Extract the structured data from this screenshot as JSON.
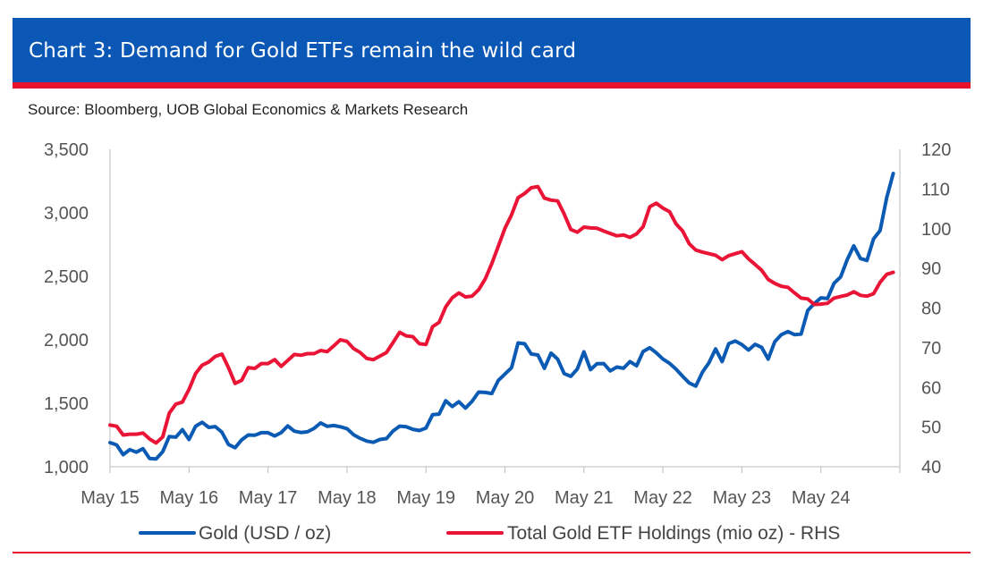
{
  "header": {
    "title": "Chart 3: Demand for Gold ETFs remain the wild card",
    "source": "Source: Bloomberg, UOB Global Economics & Markets Research"
  },
  "colors": {
    "brand_blue": "#0a57b5",
    "brand_red": "#e8112d",
    "gold_line": "#0b5ab3",
    "etf_line": "#ea1536"
  },
  "chart_data": {
    "type": "line",
    "x_labels": [
      "May 15",
      "May 16",
      "May 17",
      "May 18",
      "May 19",
      "May 20",
      "May 21",
      "May 22",
      "May 23",
      "May 24"
    ],
    "ylim_left": [
      1000,
      3500
    ],
    "yticks_left": [
      "1,000",
      "1,500",
      "2,000",
      "2,500",
      "3,000",
      "3,500"
    ],
    "ylim_right": [
      40,
      120
    ],
    "yticks_right": [
      "40",
      "50",
      "60",
      "70",
      "80",
      "90",
      "100",
      "110",
      "120"
    ],
    "legend_position": "bottom",
    "series": [
      {
        "name": "Gold (USD / oz)",
        "axis": "left",
        "color": "#0b5ab3",
        "x": [
          "2015-05",
          "2015-06",
          "2015-07",
          "2015-08",
          "2015-09",
          "2015-10",
          "2015-11",
          "2015-12",
          "2016-01",
          "2016-02",
          "2016-03",
          "2016-04",
          "2016-05",
          "2016-06",
          "2016-07",
          "2016-08",
          "2016-09",
          "2016-10",
          "2016-11",
          "2016-12",
          "2017-01",
          "2017-02",
          "2017-03",
          "2017-04",
          "2017-05",
          "2017-06",
          "2017-07",
          "2017-08",
          "2017-09",
          "2017-10",
          "2017-11",
          "2017-12",
          "2018-01",
          "2018-02",
          "2018-03",
          "2018-04",
          "2018-05",
          "2018-06",
          "2018-07",
          "2018-08",
          "2018-09",
          "2018-10",
          "2018-11",
          "2018-12",
          "2019-01",
          "2019-02",
          "2019-03",
          "2019-04",
          "2019-05",
          "2019-06",
          "2019-07",
          "2019-08",
          "2019-09",
          "2019-10",
          "2019-11",
          "2019-12",
          "2020-01",
          "2020-02",
          "2020-03",
          "2020-04",
          "2020-05",
          "2020-06",
          "2020-07",
          "2020-08",
          "2020-09",
          "2020-10",
          "2020-11",
          "2020-12",
          "2021-01",
          "2021-02",
          "2021-03",
          "2021-04",
          "2021-05",
          "2021-06",
          "2021-07",
          "2021-08",
          "2021-09",
          "2021-10",
          "2021-11",
          "2021-12",
          "2022-01",
          "2022-02",
          "2022-03",
          "2022-04",
          "2022-05",
          "2022-06",
          "2022-07",
          "2022-08",
          "2022-09",
          "2022-10",
          "2022-11",
          "2022-12",
          "2023-01",
          "2023-02",
          "2023-03",
          "2023-04",
          "2023-05",
          "2023-06",
          "2023-07",
          "2023-08",
          "2023-09",
          "2023-10",
          "2023-11",
          "2023-12",
          "2024-01",
          "2024-02",
          "2024-03",
          "2024-04",
          "2024-05",
          "2024-06",
          "2024-07",
          "2024-08",
          "2024-09",
          "2024-10",
          "2024-11",
          "2024-12",
          "2025-01",
          "2025-02",
          "2025-03",
          "2025-04"
        ],
        "values": [
          1190,
          1172,
          1095,
          1135,
          1115,
          1142,
          1065,
          1061,
          1118,
          1238,
          1233,
          1292,
          1215,
          1320,
          1350,
          1310,
          1316,
          1272,
          1175,
          1150,
          1212,
          1250,
          1248,
          1268,
          1268,
          1242,
          1268,
          1322,
          1280,
          1270,
          1275,
          1302,
          1345,
          1318,
          1325,
          1315,
          1300,
          1252,
          1224,
          1202,
          1192,
          1215,
          1222,
          1282,
          1320,
          1315,
          1295,
          1285,
          1305,
          1410,
          1415,
          1520,
          1475,
          1512,
          1462,
          1515,
          1588,
          1585,
          1577,
          1680,
          1730,
          1780,
          1975,
          1968,
          1888,
          1880,
          1775,
          1895,
          1848,
          1734,
          1712,
          1770,
          1905,
          1765,
          1812,
          1813,
          1755,
          1785,
          1775,
          1828,
          1795,
          1908,
          1937,
          1897,
          1848,
          1815,
          1768,
          1712,
          1660,
          1635,
          1745,
          1820,
          1928,
          1828,
          1970,
          1990,
          1962,
          1919,
          1964,
          1940,
          1848,
          1985,
          2040,
          2065,
          2040,
          2045,
          2230,
          2285,
          2330,
          2325,
          2445,
          2495,
          2630,
          2740,
          2640,
          2625,
          2795,
          2860,
          3120,
          3310
        ]
      },
      {
        "name": "Total Gold ETF Holdings (mio oz) - RHS",
        "axis": "right",
        "color": "#ea1536",
        "x": [
          "2015-05",
          "2015-06",
          "2015-07",
          "2015-08",
          "2015-09",
          "2015-10",
          "2015-11",
          "2015-12",
          "2016-01",
          "2016-02",
          "2016-03",
          "2016-04",
          "2016-05",
          "2016-06",
          "2016-07",
          "2016-08",
          "2016-09",
          "2016-10",
          "2016-11",
          "2016-12",
          "2017-01",
          "2017-02",
          "2017-03",
          "2017-04",
          "2017-05",
          "2017-06",
          "2017-07",
          "2017-08",
          "2017-09",
          "2017-10",
          "2017-11",
          "2017-12",
          "2018-01",
          "2018-02",
          "2018-03",
          "2018-04",
          "2018-05",
          "2018-06",
          "2018-07",
          "2018-08",
          "2018-09",
          "2018-10",
          "2018-11",
          "2018-12",
          "2019-01",
          "2019-02",
          "2019-03",
          "2019-04",
          "2019-05",
          "2019-06",
          "2019-07",
          "2019-08",
          "2019-09",
          "2019-10",
          "2019-11",
          "2019-12",
          "2020-01",
          "2020-02",
          "2020-03",
          "2020-04",
          "2020-05",
          "2020-06",
          "2020-07",
          "2020-08",
          "2020-09",
          "2020-10",
          "2020-11",
          "2020-12",
          "2021-01",
          "2021-02",
          "2021-03",
          "2021-04",
          "2021-05",
          "2021-06",
          "2021-07",
          "2021-08",
          "2021-09",
          "2021-10",
          "2021-11",
          "2021-12",
          "2022-01",
          "2022-02",
          "2022-03",
          "2022-04",
          "2022-05",
          "2022-06",
          "2022-07",
          "2022-08",
          "2022-09",
          "2022-10",
          "2022-11",
          "2022-12",
          "2023-01",
          "2023-02",
          "2023-03",
          "2023-04",
          "2023-05",
          "2023-06",
          "2023-07",
          "2023-08",
          "2023-09",
          "2023-10",
          "2023-11",
          "2023-12",
          "2024-01",
          "2024-02",
          "2024-03",
          "2024-04",
          "2024-05",
          "2024-06",
          "2024-07",
          "2024-08",
          "2024-09",
          "2024-10",
          "2024-11",
          "2024-12",
          "2025-01",
          "2025-02",
          "2025-03",
          "2025-04"
        ],
        "values": [
          50.5,
          50.2,
          48.0,
          48.2,
          48.2,
          48.5,
          47.0,
          46.0,
          47.5,
          53.5,
          55.8,
          56.3,
          59.5,
          63.5,
          65.6,
          66.4,
          67.8,
          68.4,
          65.0,
          61.0,
          61.8,
          65.0,
          64.8,
          66.0,
          66.0,
          67.0,
          65.3,
          66.8,
          68.3,
          68.1,
          68.5,
          68.5,
          69.3,
          69.0,
          70.5,
          72.0,
          71.6,
          69.8,
          68.8,
          67.3,
          67.0,
          67.9,
          68.8,
          71.3,
          73.9,
          73.0,
          72.8,
          71.0,
          70.8,
          75.3,
          76.4,
          80.3,
          82.6,
          83.8,
          82.8,
          83.0,
          84.6,
          87.3,
          91.2,
          95.6,
          100.1,
          103.5,
          107.8,
          108.9,
          110.3,
          110.6,
          107.7,
          107.2,
          107.0,
          103.7,
          99.8,
          99.1,
          100.4,
          100.2,
          100.1,
          99.4,
          98.8,
          98.2,
          98.4,
          97.8,
          98.7,
          100.5,
          105.5,
          106.4,
          105.2,
          104.3,
          101.2,
          99.4,
          96.2,
          94.6,
          94.1,
          93.7,
          93.3,
          92.2,
          93.2,
          93.7,
          94.2,
          92.4,
          91.0,
          89.5,
          87.2,
          86.2,
          85.5,
          85.2,
          83.8,
          82.5,
          82.3,
          80.9,
          81.0,
          81.2,
          82.5,
          82.9,
          83.3,
          84.1,
          83.2,
          83.0,
          83.6,
          86.5,
          88.5,
          89.0
        ]
      }
    ]
  }
}
